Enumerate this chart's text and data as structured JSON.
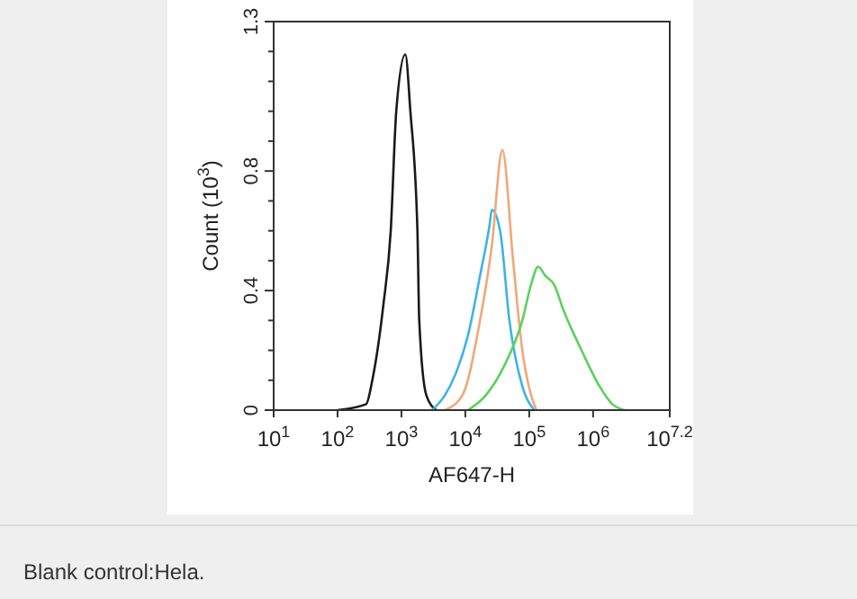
{
  "chart_data": {
    "type": "line",
    "xlabel": "AF647-H",
    "ylabel": "Count (10$^{3}$)",
    "log": "x",
    "xlim": [
      10,
      15848932
    ],
    "xticks": [
      {
        "value": 10,
        "label": "10$^{1}$"
      },
      {
        "value": 100,
        "label": "10$^{2}$"
      },
      {
        "value": 1000,
        "label": "10$^{3}$"
      },
      {
        "value": 10000,
        "label": "10$^{4}$"
      },
      {
        "value": 100000,
        "label": "10$^{5}$"
      },
      {
        "value": 1000000,
        "label": "10$^{6}$"
      },
      {
        "value": 15848932,
        "label": "10$^{7.2}$"
      }
    ],
    "ylim": [
      0,
      1.3
    ],
    "yticks": [
      0,
      {
        "value": 0.1,
        "label": null
      },
      {
        "value": 0.2,
        "label": null
      },
      {
        "value": 0.3,
        "label": null
      },
      0.4,
      {
        "value": 0.5,
        "label": null
      },
      {
        "value": 0.6,
        "label": null
      },
      {
        "value": 0.7,
        "label": null
      },
      0.8,
      {
        "value": 0.9,
        "label": null
      },
      {
        "value": 1.0,
        "label": null
      },
      {
        "value": 1.1,
        "label": null
      },
      {
        "value": 1.2,
        "label": null
      },
      1.3
    ],
    "grid": false,
    "marker": "none",
    "line_style": "solid",
    "series": [
      {
        "color": "#1a1a1a",
        "x": [
          100,
          280,
          350,
          520,
          680,
          830,
          1150,
          1380,
          1780,
          1900,
          2450,
          3500
        ],
        "values": [
          0,
          0.02,
          0.1,
          0.35,
          0.6,
          1.0,
          1.19,
          1.0,
          0.6,
          0.3,
          0.05,
          0
        ]
      },
      {
        "color": "#3cb4e6",
        "x": [
          3000,
          4800,
          7000,
          11000,
          17000,
          24000,
          26000,
          35000,
          49000,
          78000,
          120000
        ],
        "values": [
          0,
          0.05,
          0.12,
          0.25,
          0.45,
          0.62,
          0.67,
          0.6,
          0.3,
          0.08,
          0
        ]
      },
      {
        "color": "#f0a878",
        "x": [
          4800,
          9000,
          17000,
          26000,
          38000,
          56000,
          78000,
          107000,
          130000
        ],
        "values": [
          0,
          0.05,
          0.3,
          0.55,
          0.87,
          0.5,
          0.2,
          0.05,
          0
        ]
      },
      {
        "color": "#5ad25a",
        "x": [
          11000,
          21000,
          41000,
          78000,
          107000,
          138000,
          178000,
          245000,
          350000,
          660000,
          1260000,
          2000000,
          3100000
        ],
        "values": [
          0,
          0.05,
          0.15,
          0.3,
          0.42,
          0.48,
          0.45,
          0.42,
          0.33,
          0.2,
          0.08,
          0.02,
          0
        ]
      }
    ],
    "annotations": [
      "Blank control:Hela."
    ]
  }
}
